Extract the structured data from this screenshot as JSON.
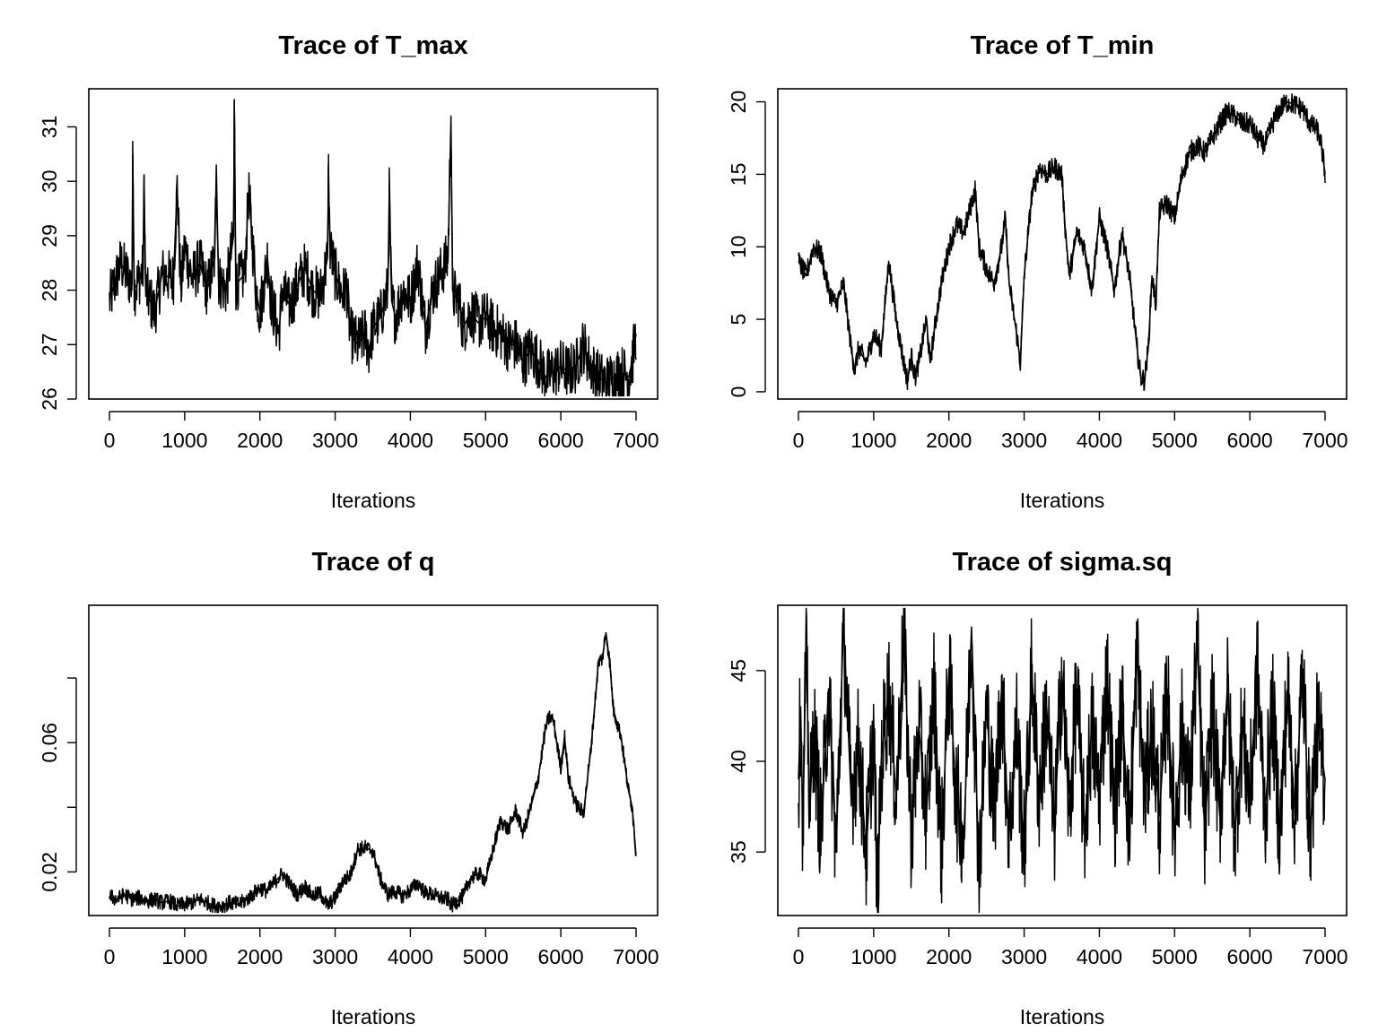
{
  "figure": {
    "background": "#ffffff",
    "line_color": "#000000"
  },
  "chart_data": [
    {
      "type": "line",
      "title": "Trace of T_max",
      "xlabel": "Iterations",
      "ylabel": "",
      "xlim": [
        0,
        7000
      ],
      "ylim": [
        26,
        31.7
      ],
      "xticks": [
        "0",
        "1000",
        "2000",
        "3000",
        "4000",
        "5000",
        "6000",
        "7000"
      ],
      "yticks": [
        "26",
        "27",
        "28",
        "29",
        "30",
        "31"
      ],
      "grid": false,
      "legend": "none",
      "series": [
        {
          "x": [
            0,
            150,
            300,
            310,
            330,
            450,
            460,
            480,
            600,
            700,
            850,
            900,
            950,
            1000,
            1100,
            1200,
            1300,
            1400,
            1420,
            1450,
            1550,
            1650,
            1660,
            1680,
            1800,
            1850,
            1950,
            2000,
            2100,
            2150,
            2250,
            2300,
            2400,
            2500,
            2600,
            2700,
            2800,
            2900,
            2910,
            2930,
            3000,
            3100,
            3150,
            3200,
            3300,
            3400,
            3450,
            3500,
            3600,
            3700,
            3720,
            3750,
            3800,
            3900,
            4000,
            4100,
            4200,
            4300,
            4400,
            4500,
            4540,
            4560,
            4580,
            4650,
            4700,
            4800,
            4900,
            5000,
            5100,
            5200,
            5300,
            5400,
            5500,
            5600,
            5700,
            5800,
            5900,
            6000,
            6100,
            6200,
            6300,
            6400,
            6500,
            6600,
            6700,
            6800,
            6900,
            6950,
            7000
          ],
          "y": [
            27.8,
            28.5,
            28.1,
            30.5,
            28.0,
            28.4,
            30.1,
            28.0,
            27.6,
            28.3,
            28.2,
            29.9,
            28.0,
            28.8,
            28.2,
            28.5,
            28.0,
            28.6,
            30.3,
            28.2,
            28.0,
            29.0,
            31.5,
            28.1,
            28.3,
            29.8,
            28.0,
            27.6,
            28.6,
            27.8,
            27.2,
            28.0,
            27.7,
            28.1,
            28.4,
            28.0,
            27.9,
            28.6,
            30.3,
            28.8,
            28.3,
            27.9,
            28.1,
            27.2,
            27.0,
            27.2,
            26.9,
            27.3,
            27.5,
            28.0,
            29.8,
            27.8,
            27.5,
            28.0,
            27.8,
            28.5,
            27.3,
            28.0,
            28.3,
            28.6,
            31.2,
            28.0,
            27.9,
            27.8,
            27.3,
            27.6,
            27.4,
            27.5,
            27.3,
            27.2,
            27.0,
            27.0,
            26.7,
            26.9,
            26.7,
            26.4,
            26.5,
            26.6,
            26.5,
            26.6,
            27.0,
            26.6,
            26.4,
            26.3,
            26.4,
            26.5,
            26.4,
            26.7,
            27.2
          ]
        }
      ]
    },
    {
      "type": "line",
      "title": "Trace of T_min",
      "xlabel": "Iterations",
      "ylabel": "",
      "xlim": [
        0,
        7000
      ],
      "ylim": [
        -0.5,
        20.9
      ],
      "xticks": [
        "0",
        "1000",
        "2000",
        "3000",
        "4000",
        "5000",
        "6000",
        "7000"
      ],
      "yticks": [
        "0",
        "5",
        "10",
        "15",
        "20"
      ],
      "grid": false,
      "legend": "none",
      "series": [
        {
          "x": [
            0,
            100,
            200,
            300,
            400,
            500,
            600,
            700,
            750,
            800,
            900,
            1000,
            1100,
            1150,
            1200,
            1300,
            1400,
            1450,
            1500,
            1550,
            1600,
            1700,
            1750,
            1800,
            1900,
            2000,
            2100,
            2200,
            2300,
            2350,
            2400,
            2500,
            2600,
            2700,
            2750,
            2800,
            2900,
            2950,
            3000,
            3100,
            3200,
            3300,
            3400,
            3500,
            3550,
            3600,
            3700,
            3800,
            3900,
            4000,
            4100,
            4200,
            4300,
            4400,
            4500,
            4550,
            4600,
            4650,
            4700,
            4750,
            4800,
            4900,
            5000,
            5100,
            5200,
            5300,
            5400,
            5500,
            5600,
            5700,
            5800,
            5900,
            6000,
            6100,
            6200,
            6300,
            6400,
            6500,
            6600,
            6700,
            6800,
            6900,
            6950,
            7000
          ],
          "y": [
            9.0,
            8.0,
            10.0,
            9.5,
            7.0,
            6.0,
            7.5,
            3.0,
            1.5,
            3.0,
            2.0,
            4.0,
            3.0,
            6.0,
            9.0,
            5.0,
            2.0,
            0.8,
            2.5,
            1.0,
            2.0,
            5.0,
            2.0,
            4.0,
            7.5,
            10.0,
            11.5,
            11.0,
            13.0,
            14.0,
            10.0,
            8.5,
            7.5,
            10.0,
            12.0,
            7.5,
            4.0,
            2.0,
            8.0,
            13.5,
            15.5,
            15.0,
            15.5,
            15.0,
            11.0,
            8.0,
            11.0,
            10.0,
            7.0,
            12.0,
            10.0,
            7.0,
            11.0,
            8.0,
            3.0,
            1.0,
            0.8,
            3.0,
            8.0,
            6.0,
            12.5,
            13.0,
            12.0,
            15.0,
            16.5,
            17.0,
            16.5,
            17.5,
            18.5,
            19.3,
            19.0,
            18.5,
            18.5,
            17.5,
            17.0,
            18.5,
            19.5,
            20.0,
            19.8,
            19.5,
            18.5,
            18.0,
            17.0,
            15.0
          ]
        }
      ]
    },
    {
      "type": "line",
      "title": "Trace of q",
      "xlabel": "Iterations",
      "ylabel": "",
      "xlim": [
        0,
        7000
      ],
      "ylim": [
        0.0065,
        0.1025
      ],
      "xticks": [
        "0",
        "1000",
        "2000",
        "3000",
        "4000",
        "5000",
        "6000",
        "7000"
      ],
      "yticks": [
        "0.02",
        "",
        "0.06",
        ""
      ],
      "ytick_values": [
        0.02,
        0.04,
        0.06,
        0.08
      ],
      "grid": false,
      "legend": "none",
      "series": [
        {
          "x": [
            0,
            100,
            200,
            300,
            400,
            500,
            600,
            700,
            800,
            900,
            1000,
            1100,
            1200,
            1300,
            1400,
            1500,
            1600,
            1700,
            1800,
            1900,
            2000,
            2100,
            2200,
            2300,
            2400,
            2500,
            2600,
            2700,
            2800,
            2900,
            3000,
            3100,
            3200,
            3300,
            3400,
            3500,
            3600,
            3700,
            3800,
            3900,
            4000,
            4100,
            4200,
            4300,
            4400,
            4500,
            4550,
            4600,
            4700,
            4800,
            4900,
            5000,
            5100,
            5200,
            5300,
            5400,
            5500,
            5600,
            5700,
            5800,
            5850,
            5900,
            6000,
            6050,
            6100,
            6200,
            6300,
            6400,
            6500,
            6550,
            6600,
            6650,
            6700,
            6800,
            6900,
            6950,
            7000
          ],
          "y": [
            0.0125,
            0.0115,
            0.013,
            0.0115,
            0.012,
            0.011,
            0.0115,
            0.0105,
            0.011,
            0.0095,
            0.01,
            0.0105,
            0.0115,
            0.0105,
            0.0095,
            0.0095,
            0.0105,
            0.01,
            0.011,
            0.013,
            0.015,
            0.014,
            0.017,
            0.0195,
            0.016,
            0.013,
            0.0155,
            0.0125,
            0.0135,
            0.0095,
            0.012,
            0.017,
            0.019,
            0.027,
            0.0275,
            0.0265,
            0.018,
            0.013,
            0.014,
            0.0125,
            0.0145,
            0.0165,
            0.0135,
            0.013,
            0.012,
            0.0115,
            0.0095,
            0.0105,
            0.0125,
            0.018,
            0.0195,
            0.0175,
            0.027,
            0.036,
            0.033,
            0.039,
            0.032,
            0.04,
            0.049,
            0.065,
            0.068,
            0.067,
            0.052,
            0.062,
            0.049,
            0.041,
            0.038,
            0.058,
            0.085,
            0.086,
            0.094,
            0.085,
            0.07,
            0.062,
            0.045,
            0.04,
            0.025
          ]
        }
      ]
    },
    {
      "type": "line",
      "title": "Trace of sigma.sq",
      "xlabel": "Iterations",
      "ylabel": "",
      "xlim": [
        0,
        7000
      ],
      "ylim": [
        31.5,
        48.6
      ],
      "xticks": [
        "0",
        "1000",
        "2000",
        "3000",
        "4000",
        "5000",
        "6000",
        "7000"
      ],
      "yticks": [
        "35",
        "40",
        "45"
      ],
      "grid": false,
      "legend": "none",
      "series": [
        {
          "x": [
            0,
            30,
            60,
            100,
            150,
            200,
            300,
            400,
            500,
            600,
            700,
            800,
            900,
            1000,
            1050,
            1100,
            1200,
            1300,
            1400,
            1500,
            1600,
            1700,
            1800,
            1900,
            2000,
            2100,
            2200,
            2300,
            2400,
            2500,
            2600,
            2700,
            2800,
            2900,
            3000,
            3100,
            3200,
            3300,
            3400,
            3500,
            3600,
            3700,
            3800,
            3900,
            4000,
            4100,
            4200,
            4300,
            4400,
            4500,
            4600,
            4700,
            4800,
            4900,
            5000,
            5100,
            5200,
            5300,
            5400,
            5500,
            5600,
            5700,
            5800,
            5900,
            6000,
            6100,
            6200,
            6300,
            6400,
            6500,
            6600,
            6700,
            6800,
            6900,
            7000
          ],
          "y": [
            39,
            43,
            36,
            46.7,
            37,
            42,
            36,
            44,
            35,
            47.6,
            38,
            41,
            35,
            42,
            31.8,
            40,
            44,
            38,
            47,
            36,
            42,
            37,
            44,
            35,
            45,
            38,
            36,
            47.4,
            34,
            43,
            37,
            44,
            36,
            42,
            35,
            45,
            38,
            43,
            36,
            45,
            37,
            44,
            36,
            42,
            38,
            45,
            37,
            43,
            36,
            46,
            38,
            42,
            37,
            44,
            36,
            42,
            38,
            46.6,
            36,
            43,
            37,
            44,
            36,
            42,
            38,
            45,
            37,
            43,
            36,
            44,
            37,
            45,
            36,
            42,
            39
          ]
        }
      ]
    }
  ]
}
